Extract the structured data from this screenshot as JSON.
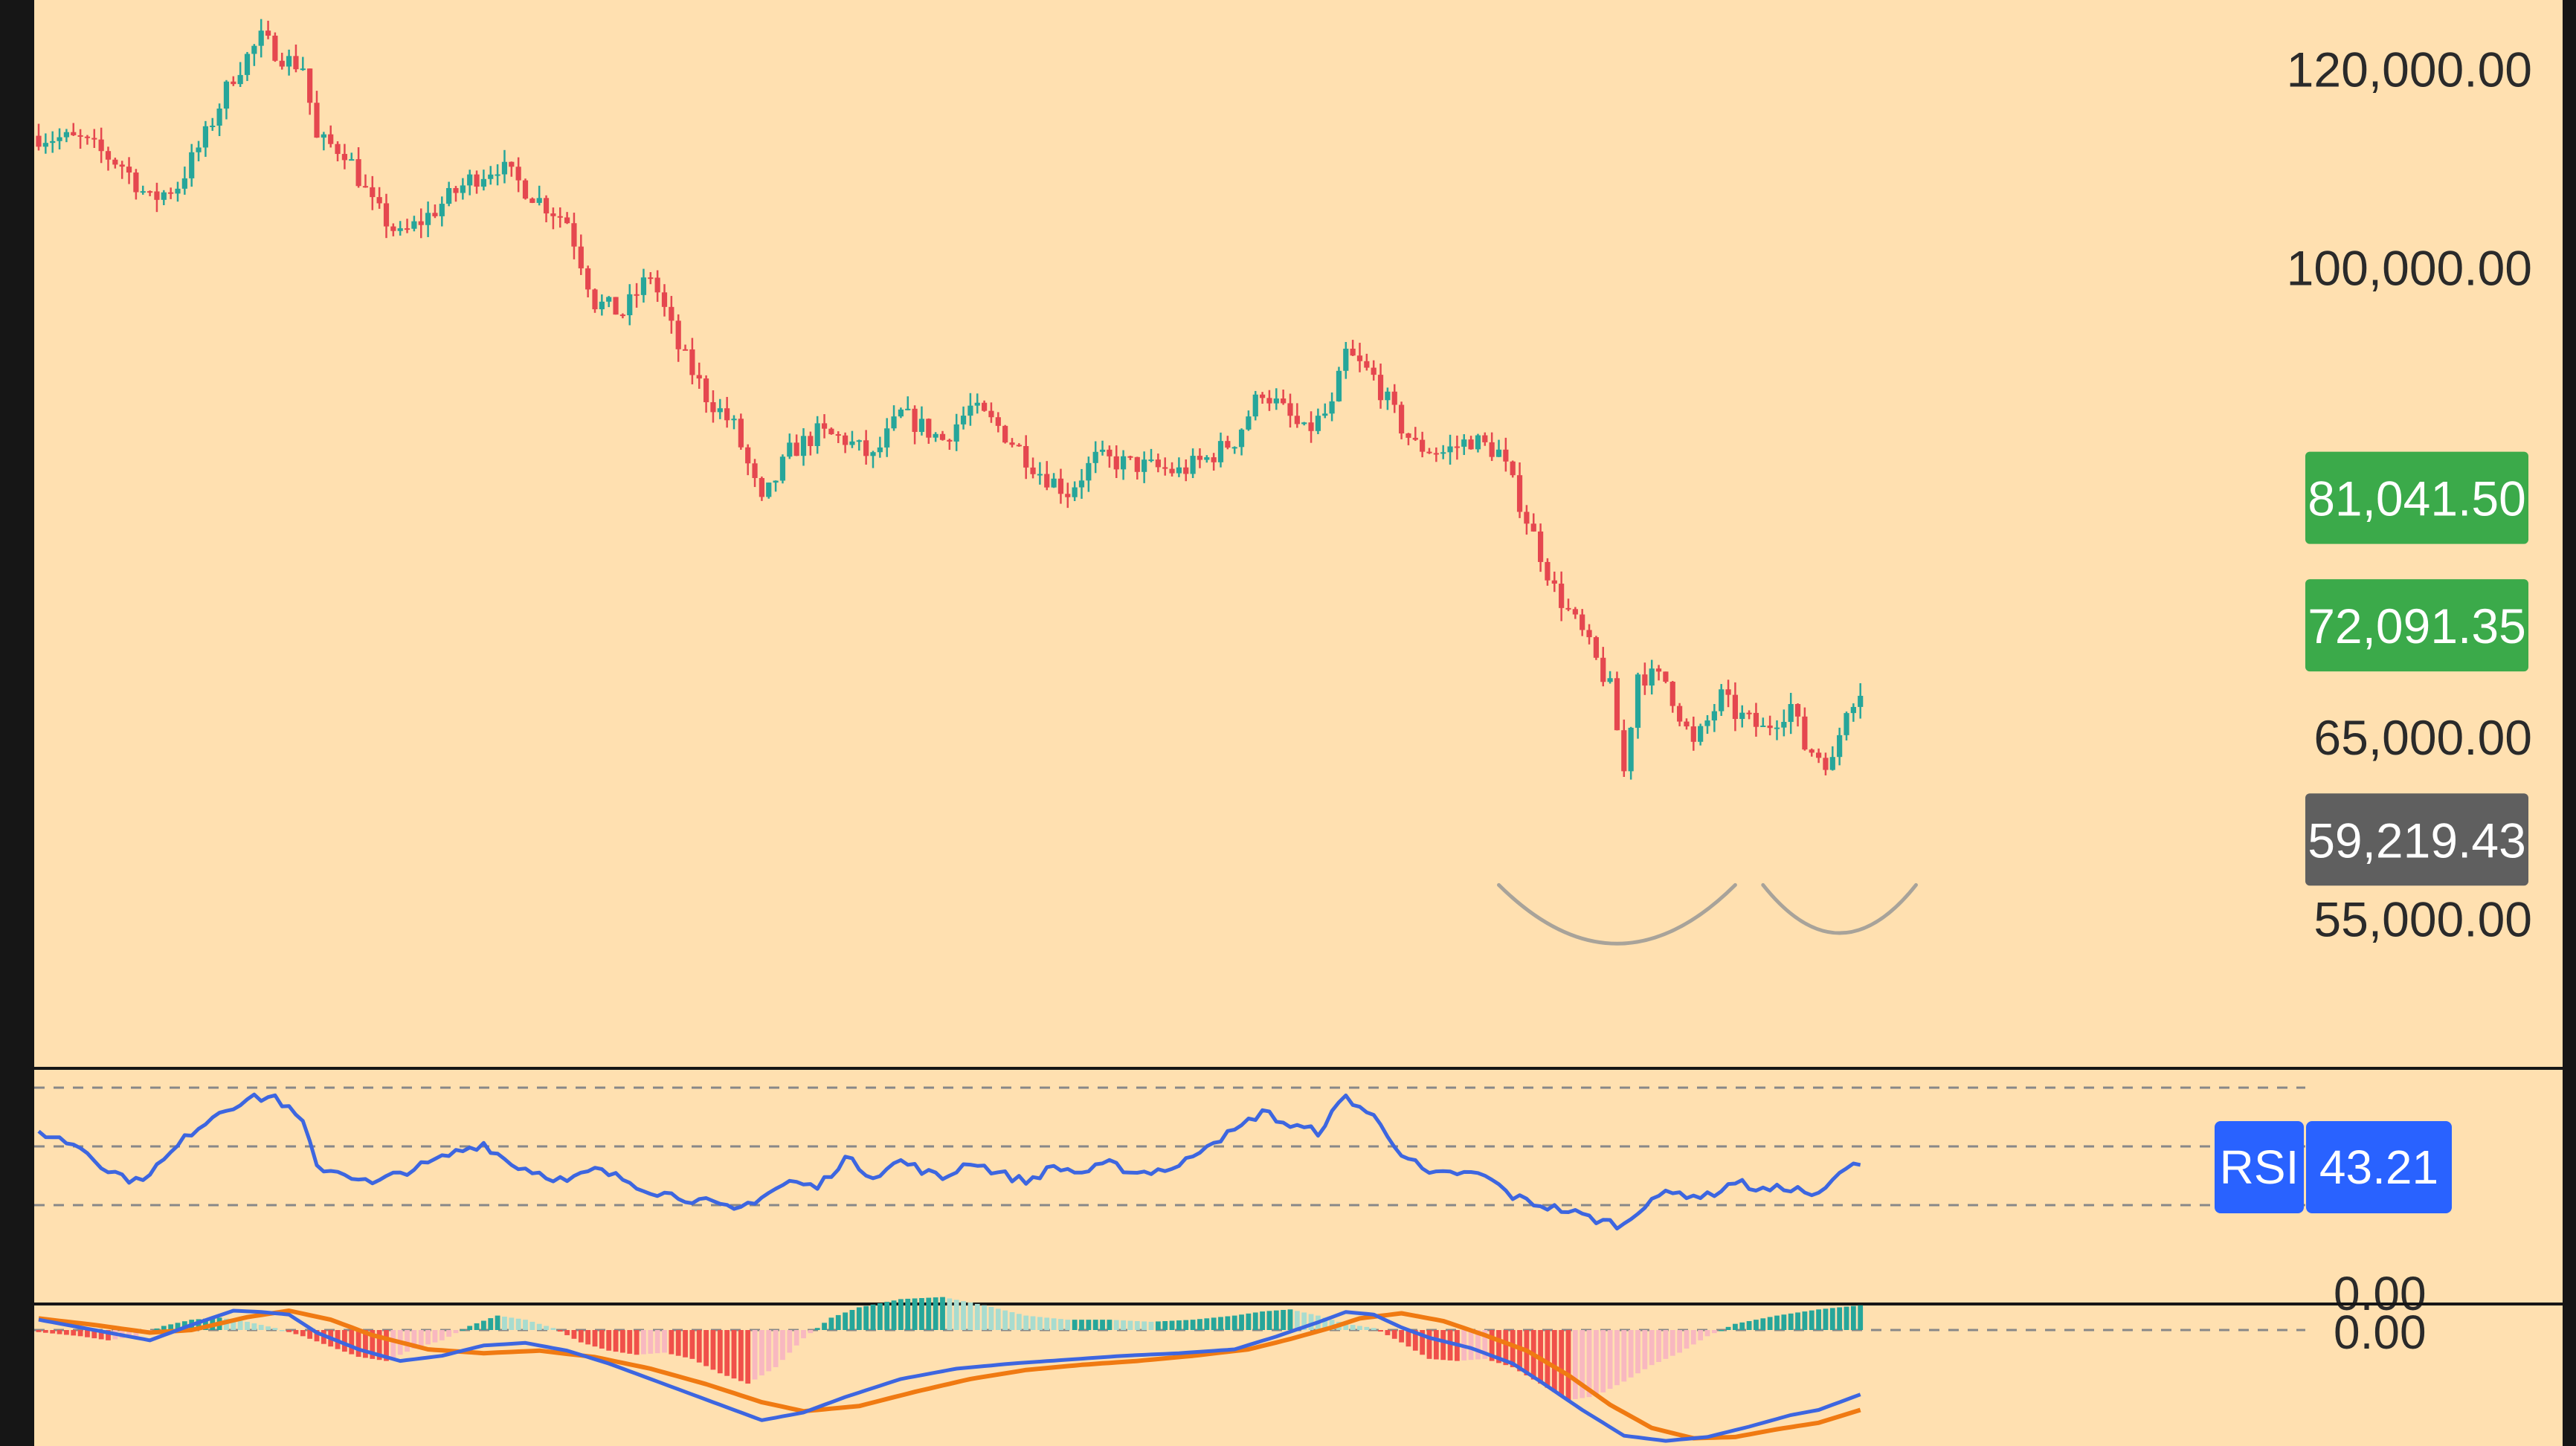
{
  "colors": {
    "background": "#FFE0B0",
    "frame": "#161616",
    "bull": "#26A69A",
    "bear": "#E5474F",
    "grid_dash": "#888888",
    "rsi_line": "#3D66E0",
    "macd_line": "#3D66E0",
    "signal_line": "#F07A12",
    "hist_up_strong": "#26A69A",
    "hist_up_weak": "#A8DCCF",
    "hist_down_strong": "#F0504A",
    "hist_down_weak": "#F8B8C0",
    "price_tag_green": "#3BAA4A",
    "price_tag_gray": "#5F5F5F",
    "rsi_tag": "#2962FF",
    "pattern_arc": "#A8A39A"
  },
  "chart_data": [
    {
      "type": "candlestick",
      "price_axis": {
        "ticks": [
          {
            "value": 120000,
            "label": "120,000.00"
          },
          {
            "value": 100000,
            "label": "100,000.00"
          },
          {
            "value": 65000,
            "label": "65,000.00"
          },
          {
            "value": 55000,
            "label": "55,000.00"
          }
        ],
        "scale": "log",
        "range": [
          48000,
          128000
        ]
      },
      "price_tags": [
        {
          "value": 81041.5,
          "label": "81,041.50",
          "color": "green"
        },
        {
          "value": 72091.35,
          "label": "72,091.35",
          "color": "green"
        },
        {
          "value": 59219.43,
          "label": "59,219.43",
          "color": "gray"
        }
      ],
      "waypoints": [
        [
          0,
          113000
        ],
        [
          6,
          112500
        ],
        [
          12,
          110000
        ],
        [
          16,
          106500
        ],
        [
          20,
          108000
        ],
        [
          24,
          113000
        ],
        [
          28,
          119500
        ],
        [
          32,
          123500
        ],
        [
          36,
          121000
        ],
        [
          38,
          120500
        ],
        [
          40,
          112500
        ],
        [
          44,
          111500
        ],
        [
          48,
          106000
        ],
        [
          52,
          103000
        ],
        [
          56,
          105000
        ],
        [
          62,
          108500
        ],
        [
          66,
          110000
        ],
        [
          72,
          106500
        ],
        [
          76,
          104500
        ],
        [
          80,
          97000
        ],
        [
          84,
          96000
        ],
        [
          88,
          99500
        ],
        [
          92,
          93000
        ],
        [
          96,
          89000
        ],
        [
          100,
          86500
        ],
        [
          102,
          83500
        ],
        [
          104,
          80500
        ],
        [
          108,
          84500
        ],
        [
          112,
          86000
        ],
        [
          116,
          85500
        ],
        [
          120,
          84000
        ],
        [
          124,
          87500
        ],
        [
          130,
          85500
        ],
        [
          134,
          88000
        ],
        [
          138,
          86500
        ],
        [
          144,
          83000
        ],
        [
          148,
          81500
        ],
        [
          152,
          84000
        ],
        [
          158,
          83500
        ],
        [
          164,
          83000
        ],
        [
          168,
          84000
        ],
        [
          172,
          85500
        ],
        [
          176,
          89500
        ],
        [
          182,
          86000
        ],
        [
          186,
          88000
        ],
        [
          188,
          92500
        ],
        [
          192,
          90500
        ],
        [
          196,
          86500
        ],
        [
          198,
          85000
        ],
        [
          202,
          84500
        ],
        [
          206,
          85500
        ],
        [
          210,
          84500
        ],
        [
          214,
          79500
        ],
        [
          218,
          74500
        ],
        [
          222,
          71500
        ],
        [
          226,
          68000
        ],
        [
          228,
          63000
        ],
        [
          230,
          69000
        ],
        [
          234,
          68500
        ],
        [
          236,
          66500
        ],
        [
          238,
          64500
        ],
        [
          242,
          67500
        ],
        [
          244,
          66500
        ],
        [
          248,
          65500
        ],
        [
          252,
          67000
        ],
        [
          254,
          64500
        ],
        [
          258,
          63500
        ],
        [
          260,
          67000
        ],
        [
          262,
          68000
        ]
      ],
      "pattern": {
        "type": "double-bottom arcs",
        "count": 2
      }
    },
    {
      "type": "line",
      "indicator": "RSI",
      "label": "RSI",
      "value": 43.21,
      "value_label": "43.21",
      "levels": [
        70,
        50,
        30
      ],
      "range": [
        0,
        100
      ],
      "zero_label": "0.00",
      "waypoints": [
        [
          0,
          55
        ],
        [
          6,
          50
        ],
        [
          10,
          42
        ],
        [
          14,
          38
        ],
        [
          18,
          45
        ],
        [
          22,
          55
        ],
        [
          26,
          62
        ],
        [
          30,
          66
        ],
        [
          34,
          67
        ],
        [
          38,
          58
        ],
        [
          40,
          43
        ],
        [
          44,
          41
        ],
        [
          48,
          37
        ],
        [
          52,
          41
        ],
        [
          56,
          44
        ],
        [
          60,
          48
        ],
        [
          64,
          51
        ],
        [
          68,
          44
        ],
        [
          72,
          41
        ],
        [
          76,
          38
        ],
        [
          80,
          42
        ],
        [
          84,
          39
        ],
        [
          88,
          35
        ],
        [
          92,
          33
        ],
        [
          96,
          31
        ],
        [
          100,
          28
        ],
        [
          104,
          33
        ],
        [
          108,
          38
        ],
        [
          112,
          36
        ],
        [
          116,
          46
        ],
        [
          120,
          40
        ],
        [
          124,
          45
        ],
        [
          130,
          39
        ],
        [
          134,
          45
        ],
        [
          138,
          41
        ],
        [
          142,
          38
        ],
        [
          146,
          43
        ],
        [
          150,
          41
        ],
        [
          154,
          44
        ],
        [
          158,
          41
        ],
        [
          164,
          43
        ],
        [
          168,
          51
        ],
        [
          172,
          55
        ],
        [
          176,
          62
        ],
        [
          180,
          57
        ],
        [
          184,
          55
        ],
        [
          188,
          67
        ],
        [
          192,
          60
        ],
        [
          196,
          48
        ],
        [
          200,
          40
        ],
        [
          204,
          41
        ],
        [
          208,
          40
        ],
        [
          212,
          33
        ],
        [
          216,
          30
        ],
        [
          220,
          28
        ],
        [
          224,
          25
        ],
        [
          228,
          23
        ],
        [
          232,
          33
        ],
        [
          236,
          34
        ],
        [
          240,
          33
        ],
        [
          244,
          38
        ],
        [
          248,
          35
        ],
        [
          252,
          36
        ],
        [
          256,
          33
        ],
        [
          260,
          43
        ],
        [
          262,
          43
        ]
      ]
    },
    {
      "type": "bar+line",
      "indicator": "MACD",
      "zero_label": "0.00",
      "range": [
        -9000,
        1700
      ],
      "macd_waypoints": [
        [
          0,
          800
        ],
        [
          8,
          0
        ],
        [
          16,
          -800
        ],
        [
          22,
          400
        ],
        [
          28,
          1500
        ],
        [
          32,
          1400
        ],
        [
          36,
          1200
        ],
        [
          40,
          -200
        ],
        [
          46,
          -1500
        ],
        [
          52,
          -2400
        ],
        [
          58,
          -2000
        ],
        [
          64,
          -1200
        ],
        [
          70,
          -1000
        ],
        [
          76,
          -1600
        ],
        [
          82,
          -2600
        ],
        [
          88,
          -3800
        ],
        [
          94,
          -5000
        ],
        [
          100,
          -6200
        ],
        [
          104,
          -7000
        ],
        [
          110,
          -6400
        ],
        [
          116,
          -5200
        ],
        [
          124,
          -3800
        ],
        [
          132,
          -3000
        ],
        [
          140,
          -2600
        ],
        [
          148,
          -2300
        ],
        [
          156,
          -2000
        ],
        [
          164,
          -1800
        ],
        [
          172,
          -1500
        ],
        [
          178,
          -500
        ],
        [
          184,
          600
        ],
        [
          188,
          1400
        ],
        [
          192,
          1200
        ],
        [
          196,
          200
        ],
        [
          200,
          -600
        ],
        [
          206,
          -1400
        ],
        [
          212,
          -2600
        ],
        [
          216,
          -4000
        ],
        [
          222,
          -6200
        ],
        [
          228,
          -8200
        ],
        [
          234,
          -8600
        ],
        [
          240,
          -8300
        ],
        [
          246,
          -7500
        ],
        [
          252,
          -6600
        ],
        [
          256,
          -6200
        ],
        [
          262,
          -5000
        ]
      ],
      "signal_waypoints": [
        [
          0,
          900
        ],
        [
          8,
          400
        ],
        [
          16,
          -200
        ],
        [
          22,
          0
        ],
        [
          30,
          1000
        ],
        [
          36,
          1500
        ],
        [
          42,
          800
        ],
        [
          48,
          -400
        ],
        [
          56,
          -1500
        ],
        [
          64,
          -1800
        ],
        [
          72,
          -1600
        ],
        [
          80,
          -2100
        ],
        [
          88,
          -3000
        ],
        [
          96,
          -4200
        ],
        [
          104,
          -5600
        ],
        [
          110,
          -6300
        ],
        [
          118,
          -5900
        ],
        [
          126,
          -4800
        ],
        [
          134,
          -3800
        ],
        [
          142,
          -3100
        ],
        [
          150,
          -2700
        ],
        [
          158,
          -2400
        ],
        [
          166,
          -2000
        ],
        [
          174,
          -1500
        ],
        [
          180,
          -700
        ],
        [
          186,
          200
        ],
        [
          190,
          900
        ],
        [
          196,
          1300
        ],
        [
          202,
          700
        ],
        [
          208,
          -400
        ],
        [
          214,
          -1600
        ],
        [
          220,
          -3500
        ],
        [
          226,
          -5800
        ],
        [
          232,
          -7600
        ],
        [
          238,
          -8400
        ],
        [
          244,
          -8300
        ],
        [
          250,
          -7700
        ],
        [
          256,
          -7200
        ],
        [
          262,
          -6200
        ]
      ],
      "histogram_waypoints": [
        [
          0,
          -100
        ],
        [
          6,
          -300
        ],
        [
          10,
          -500
        ],
        [
          14,
          -300
        ],
        [
          18,
          200
        ],
        [
          22,
          500
        ],
        [
          26,
          600
        ],
        [
          30,
          400
        ],
        [
          34,
          100
        ],
        [
          38,
          -300
        ],
        [
          42,
          -800
        ],
        [
          46,
          -1300
        ],
        [
          50,
          -1500
        ],
        [
          54,
          -900
        ],
        [
          58,
          -500
        ],
        [
          62,
          200
        ],
        [
          66,
          700
        ],
        [
          70,
          500
        ],
        [
          74,
          100
        ],
        [
          78,
          -600
        ],
        [
          82,
          -1000
        ],
        [
          86,
          -1200
        ],
        [
          90,
          -1100
        ],
        [
          94,
          -1400
        ],
        [
          98,
          -2100
        ],
        [
          102,
          -2600
        ],
        [
          106,
          -1800
        ],
        [
          110,
          -400
        ],
        [
          114,
          600
        ],
        [
          118,
          1100
        ],
        [
          124,
          1500
        ],
        [
          130,
          1600
        ],
        [
          136,
          1200
        ],
        [
          142,
          700
        ],
        [
          148,
          500
        ],
        [
          154,
          500
        ],
        [
          160,
          400
        ],
        [
          166,
          500
        ],
        [
          172,
          700
        ],
        [
          176,
          900
        ],
        [
          180,
          1000
        ],
        [
          184,
          700
        ],
        [
          188,
          300
        ],
        [
          192,
          100
        ],
        [
          196,
          -600
        ],
        [
          200,
          -1400
        ],
        [
          204,
          -1500
        ],
        [
          208,
          -1400
        ],
        [
          212,
          -1800
        ],
        [
          216,
          -2600
        ],
        [
          220,
          -3400
        ],
        [
          224,
          -3200
        ],
        [
          228,
          -2500
        ],
        [
          232,
          -1700
        ],
        [
          236,
          -1100
        ],
        [
          240,
          -300
        ],
        [
          244,
          300
        ],
        [
          250,
          700
        ],
        [
          256,
          1000
        ],
        [
          262,
          1200
        ]
      ]
    }
  ]
}
